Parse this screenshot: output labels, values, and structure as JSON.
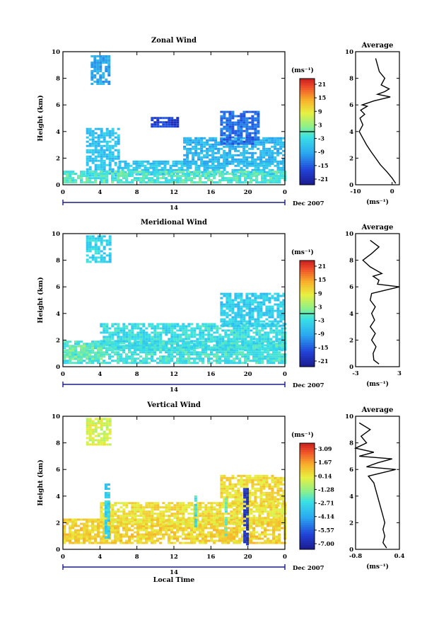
{
  "page": {
    "xlabel": "Local Time",
    "date_label": "Dec 2007",
    "day_label": "14"
  },
  "chart_data": [
    {
      "type": "heatmap",
      "title": "Zonal Wind",
      "ylabel": "Height (km)",
      "xlim": [
        0,
        24
      ],
      "ylim": [
        0,
        10
      ],
      "x_ticks": [
        "0",
        "4",
        "8",
        "12",
        "16",
        "20",
        "0"
      ],
      "y_ticks": [
        "0",
        "2",
        "4",
        "6",
        "8",
        "10"
      ],
      "colorbar": {
        "unit": "(ms⁻¹)",
        "labels": [
          "21",
          "15",
          "9",
          "3",
          "-3",
          "-9",
          "-15",
          "-21"
        ],
        "range": [
          -24,
          24
        ],
        "zero_line": 0
      },
      "average": {
        "title": "Average",
        "xlim": [
          -10,
          2
        ],
        "x_ticks": [
          "-10",
          "0"
        ],
        "y_ticks": [
          "0",
          "2",
          "4",
          "6",
          "8",
          "10"
        ],
        "unit": "(ms⁻¹)",
        "height": [
          0.1,
          0.5,
          1.0,
          1.5,
          2.0,
          2.5,
          3.0,
          3.5,
          4.0,
          4.5,
          5.0,
          5.3,
          5.6,
          5.9,
          6.0,
          6.3,
          6.6,
          6.8,
          7.0,
          7.2,
          7.5,
          8.0,
          8.5,
          9.0,
          9.5
        ],
        "value": [
          1.0,
          0.0,
          -1.5,
          -3.2,
          -4.5,
          -5.8,
          -7.0,
          -8.0,
          -9.0,
          -8.0,
          -8.8,
          -7.5,
          -8.6,
          -6.8,
          -8.2,
          -5.0,
          -0.5,
          -4.0,
          -2.0,
          -0.8,
          -3.0,
          -2.0,
          -3.5,
          -4.0,
          -4.5
        ]
      },
      "patches": [
        {
          "x": [
            3.0,
            5.0
          ],
          "y": [
            7.5,
            9.7
          ],
          "v": -9
        },
        {
          "x": [
            2.5,
            6.0
          ],
          "y": [
            0.6,
            4.2
          ],
          "v": -6
        },
        {
          "x": [
            6.0,
            24.0
          ],
          "y": [
            0.7,
            1.8
          ],
          "v": -6
        },
        {
          "x": [
            13.0,
            24.0
          ],
          "y": [
            1.5,
            3.5
          ],
          "v": -8
        },
        {
          "x": [
            17.0,
            21.0
          ],
          "y": [
            3.0,
            5.5
          ],
          "v": -14
        },
        {
          "x": [
            9.5,
            12.5
          ],
          "y": [
            4.3,
            5.0
          ],
          "v": -18
        },
        {
          "x": [
            0.0,
            24.0
          ],
          "y": [
            0.1,
            0.9
          ],
          "v": -1
        }
      ]
    },
    {
      "type": "heatmap",
      "title": "Meridional Wind",
      "ylabel": "Height (km)",
      "xlim": [
        0,
        24
      ],
      "ylim": [
        0,
        10
      ],
      "x_ticks": [
        "0",
        "4",
        "8",
        "12",
        "16",
        "20",
        "0"
      ],
      "y_ticks": [
        "0",
        "2",
        "4",
        "6",
        "8",
        "10"
      ],
      "colorbar": {
        "unit": "(ms⁻¹)",
        "labels": [
          "21",
          "15",
          "9",
          "3",
          "-3",
          "-9",
          "-15",
          "-21"
        ],
        "range": [
          -24,
          24
        ],
        "zero_line": 0
      },
      "average": {
        "title": "Average",
        "xlim": [
          -3,
          3
        ],
        "x_ticks": [
          "-3",
          "3"
        ],
        "y_ticks": [
          "0",
          "2",
          "4",
          "6",
          "8",
          "10"
        ],
        "unit": "(ms⁻¹)",
        "height": [
          0.2,
          0.5,
          1.0,
          1.5,
          2.0,
          2.5,
          3.0,
          3.5,
          4.0,
          4.5,
          5.0,
          5.5,
          6.0,
          6.2,
          6.5,
          6.8,
          7.0,
          7.5,
          8.0,
          8.5,
          9.0,
          9.5
        ],
        "value": [
          0.2,
          -0.5,
          -0.6,
          -0.2,
          -0.8,
          -0.3,
          -1.0,
          -0.4,
          -0.8,
          -0.3,
          -1.0,
          -0.8,
          3.0,
          0.0,
          0.2,
          -0.6,
          0.6,
          -1.0,
          -2.0,
          -0.8,
          0.2,
          -1.0
        ]
      },
      "patches": [
        {
          "x": [
            2.5,
            5.0
          ],
          "y": [
            7.8,
            9.8
          ],
          "v": -4
        },
        {
          "x": [
            0.0,
            24.0
          ],
          "y": [
            0.2,
            1.8
          ],
          "v": -2
        },
        {
          "x": [
            4.0,
            24.0
          ],
          "y": [
            1.2,
            3.2
          ],
          "v": -3
        },
        {
          "x": [
            17.0,
            24.0
          ],
          "y": [
            3.0,
            5.5
          ],
          "v": -5
        },
        {
          "x": [
            0.0,
            4.0
          ],
          "y": [
            0.5,
            1.6
          ],
          "v": 1
        }
      ]
    },
    {
      "type": "heatmap",
      "title": "Vertical Wind",
      "ylabel": "Height (km)",
      "xlabel": "Local Time",
      "xlim": [
        0,
        24
      ],
      "ylim": [
        0,
        10
      ],
      "x_ticks": [
        "0",
        "4",
        "8",
        "12",
        "16",
        "20",
        "0"
      ],
      "y_ticks": [
        "0",
        "2",
        "4",
        "6",
        "8",
        "10"
      ],
      "colorbar": {
        "unit": "(ms⁻¹)",
        "labels": [
          "3.09",
          "1.67",
          "0.14",
          "-1.28",
          "-2.71",
          "-4.14",
          "-5.57",
          "-7.00"
        ],
        "range": [
          -7.7,
          3.8
        ],
        "zero_line": null
      },
      "average": {
        "title": "Average",
        "xlim": [
          -0.8,
          0.4
        ],
        "x_ticks": [
          "-0.8",
          "0.4"
        ],
        "y_ticks": [
          "0",
          "2",
          "4",
          "6",
          "8",
          "10"
        ],
        "unit": "(ms⁻¹)",
        "height": [
          0.1,
          0.5,
          1.0,
          1.5,
          2.0,
          2.5,
          3.0,
          3.5,
          4.0,
          4.5,
          5.0,
          5.5,
          6.0,
          6.2,
          6.5,
          6.8,
          7.0,
          7.3,
          7.6,
          8.0,
          8.5,
          9.0,
          9.5
        ],
        "value": [
          0.05,
          -0.05,
          0.0,
          -0.05,
          0.0,
          -0.05,
          -0.1,
          -0.15,
          -0.2,
          -0.25,
          -0.3,
          -0.45,
          0.3,
          -0.5,
          -0.2,
          0.2,
          -0.7,
          -0.3,
          -0.8,
          -0.5,
          -0.65,
          -0.4,
          -0.7
        ]
      },
      "patches": [
        {
          "x": [
            2.5,
            5.0
          ],
          "y": [
            7.8,
            9.8
          ],
          "v": -0.2
        },
        {
          "x": [
            0.0,
            24.0
          ],
          "y": [
            0.4,
            2.2
          ],
          "v": 0.8
        },
        {
          "x": [
            4.0,
            24.0
          ],
          "y": [
            1.8,
            3.5
          ],
          "v": 0.5
        },
        {
          "x": [
            17.0,
            24.0
          ],
          "y": [
            3.2,
            5.5
          ],
          "v": 0.6
        },
        {
          "x": [
            4.5,
            5.0
          ],
          "y": [
            0.8,
            4.8
          ],
          "v": -3.0
        },
        {
          "x": [
            14.2,
            14.5
          ],
          "y": [
            1.5,
            4.0
          ],
          "v": -2.5
        },
        {
          "x": [
            19.5,
            19.9
          ],
          "y": [
            0.3,
            4.5
          ],
          "v": -6.5
        },
        {
          "x": [
            17.5,
            17.8
          ],
          "y": [
            1.0,
            4.0
          ],
          "v": -2.0
        }
      ]
    }
  ]
}
